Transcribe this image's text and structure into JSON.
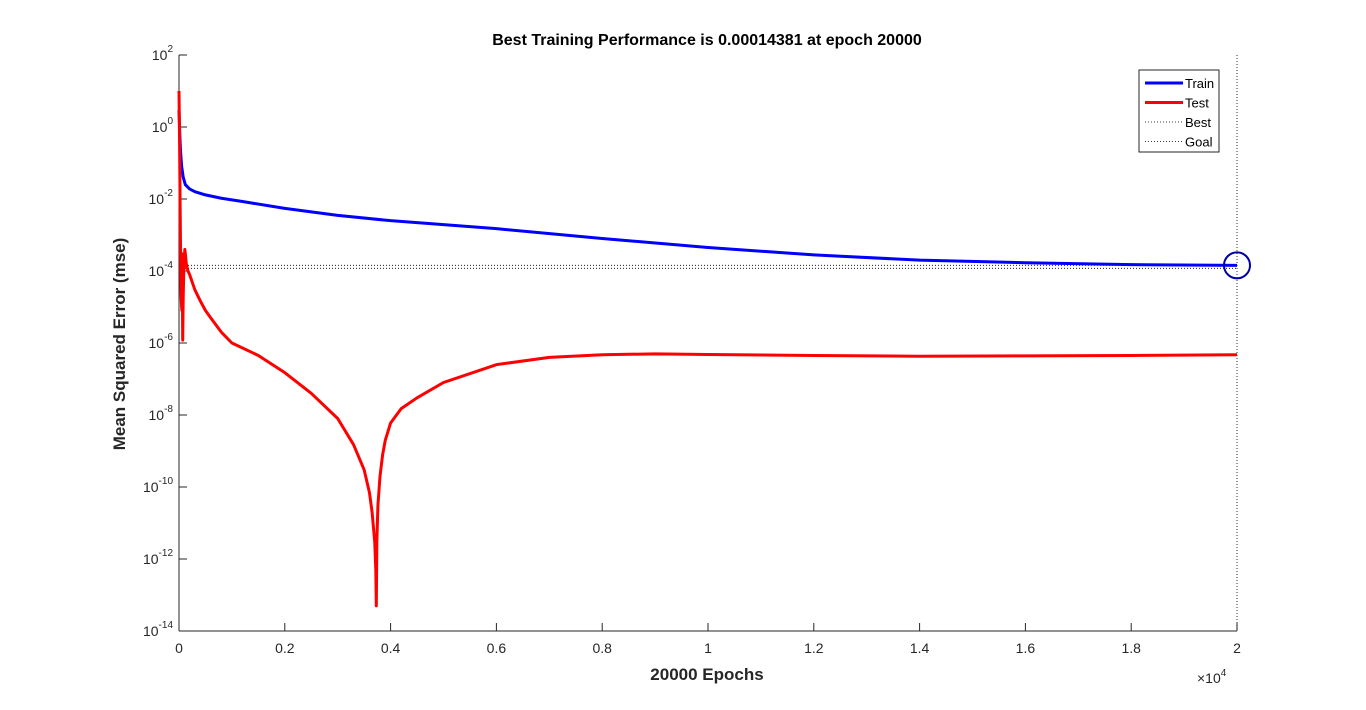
{
  "chart_data": {
    "type": "line",
    "title": "Best Training Performance is 0.00014381 at epoch 20000",
    "xlabel": "20000 Epochs",
    "ylabel": "Mean Squared Error  (mse)",
    "x_multiplier_base": "×10",
    "x_multiplier_exp": "4",
    "xlim": [
      0,
      20000
    ],
    "ylim_log10": [
      -14,
      2
    ],
    "y_scale": "log",
    "x_ticks": [
      0,
      2000,
      4000,
      6000,
      8000,
      10000,
      12000,
      14000,
      16000,
      18000,
      20000
    ],
    "x_tick_labels": [
      "0",
      "0.2",
      "0.4",
      "0.6",
      "0.8",
      "1",
      "1.2",
      "1.4",
      "1.6",
      "1.8",
      "2"
    ],
    "y_ticks_log10": [
      2,
      0,
      -2,
      -4,
      -6,
      -8,
      -10,
      -12,
      -14
    ],
    "y_tick_base": "10",
    "y_tick_exps": [
      "2",
      "0",
      "-2",
      "-4",
      "-6",
      "-8",
      "-10",
      "-12",
      "-14"
    ],
    "legend_position": "top-right",
    "legend": [
      "Train",
      "Test",
      "Best",
      "Goal"
    ],
    "series": [
      {
        "name": "Train",
        "color": "#0000ff",
        "x": [
          0,
          10,
          20,
          30,
          50,
          80,
          120,
          200,
          300,
          500,
          800,
          1200,
          2000,
          3000,
          4000,
          6000,
          8000,
          10000,
          12000,
          14000,
          16000,
          18000,
          20000
        ],
        "y": [
          3,
          1,
          0.4,
          0.2,
          0.08,
          0.04,
          0.025,
          0.019,
          0.016,
          0.013,
          0.0105,
          0.0085,
          0.0055,
          0.0035,
          0.0025,
          0.0015,
          0.0008,
          0.00045,
          0.00028,
          0.0002,
          0.00017,
          0.00015,
          0.00014381
        ]
      },
      {
        "name": "Test",
        "color": "#ff0000",
        "x": [
          0,
          10,
          20,
          30,
          40,
          50,
          55,
          60,
          70,
          80,
          90,
          100,
          110,
          120,
          140,
          170,
          200,
          300,
          400,
          500,
          600,
          800,
          1000,
          1500,
          2000,
          2500,
          3000,
          3300,
          3500,
          3600,
          3650,
          3700,
          3720,
          3730,
          3740,
          3760,
          3800,
          3850,
          3900,
          4000,
          4200,
          4500,
          5000,
          6000,
          7000,
          8000,
          9000,
          10000,
          12000,
          14000,
          16000,
          18000,
          20000
        ],
        "y": [
          10,
          0.5,
          0.01,
          0.0003,
          2e-05,
          1e-05,
          8e-06,
          0.0003,
          1.2e-06,
          2e-05,
          0.0001,
          0.0002,
          0.0004,
          0.0003,
          0.00015,
          0.0001,
          8e-05,
          3e-05,
          1.5e-05,
          8e-06,
          5e-06,
          2e-06,
          1e-06,
          4.5e-07,
          1.5e-07,
          4e-08,
          8e-09,
          1.5e-09,
          3e-10,
          7e-11,
          2e-11,
          3e-12,
          5e-13,
          5e-14,
          3e-12,
          3e-11,
          2e-10,
          8e-10,
          2e-09,
          6e-09,
          1.5e-08,
          3e-08,
          8e-08,
          2.5e-07,
          4e-07,
          4.7e-07,
          5e-07,
          4.8e-07,
          4.5e-07,
          4.3e-07,
          4.4e-07,
          4.5e-07,
          4.7e-07
        ]
      }
    ],
    "best": {
      "epoch": 20000,
      "value": 0.00014381,
      "color": "#0000a0"
    },
    "goal": {
      "value": 0.00014381
    }
  }
}
